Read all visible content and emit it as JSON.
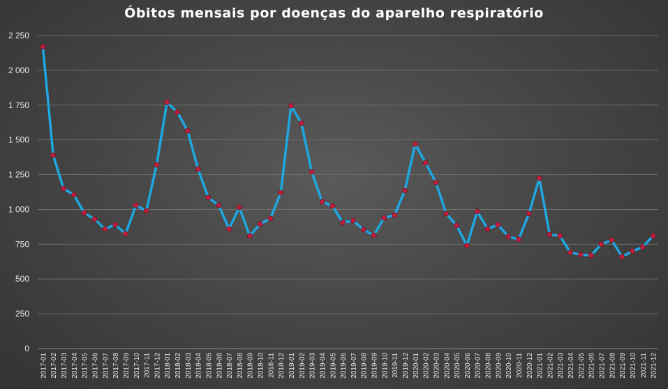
{
  "chart_data": {
    "type": "line",
    "title": "Óbitos mensais por doenças do aparelho respiratório",
    "xlabel": "",
    "ylabel": "",
    "ylim": [
      0,
      2250
    ],
    "yticks": [
      0,
      250,
      500,
      750,
      1000,
      1250,
      1500,
      1750,
      2000,
      2250
    ],
    "ytick_labels": [
      "0",
      "250",
      "500",
      "750",
      "1 000",
      "1 250",
      "1 500",
      "1 750",
      "2 000",
      "2 250"
    ],
    "grid": true,
    "legend": "none",
    "line_color": "#1ea7e1",
    "marker_color": "#c0203c",
    "categories": [
      "2017-01",
      "2017-02",
      "2017-03",
      "2017-04",
      "2017-05",
      "2017-06",
      "2017-07",
      "2017-08",
      "2017-09",
      "2017-10",
      "2017-11",
      "2017-12",
      "2018-01",
      "2018-02",
      "2018-03",
      "2018-04",
      "2018-05",
      "2018-06",
      "2018-07",
      "2018-08",
      "2018-09",
      "2018-10",
      "2018-11",
      "2018-12",
      "2019-01",
      "2019-02",
      "2019-03",
      "2019-04",
      "2019-05",
      "2019-06",
      "2019-07",
      "2019-08",
      "2019-09",
      "2019-10",
      "2019-11",
      "2019-12",
      "2020-01",
      "2020-02",
      "2020-03",
      "2020-04",
      "2020-05",
      "2020-06",
      "2020-07",
      "2020-08",
      "2020-09",
      "2020-10",
      "2020-11",
      "2020-12",
      "2021-01",
      "2021-02",
      "2021-03",
      "2021-04",
      "2021-05",
      "2021-06",
      "2021-07",
      "2021-08",
      "2021-09",
      "2021-10",
      "2021-11",
      "2021-12"
    ],
    "series": [
      {
        "values": [
          2170,
          1390,
          1150,
          1105,
          975,
          930,
          860,
          890,
          825,
          1030,
          990,
          1320,
          1770,
          1700,
          1565,
          1290,
          1085,
          1030,
          860,
          1015,
          810,
          895,
          935,
          1120,
          1745,
          1620,
          1270,
          1055,
          1025,
          905,
          920,
          855,
          815,
          940,
          960,
          1135,
          1470,
          1335,
          1195,
          970,
          885,
          740,
          985,
          860,
          890,
          805,
          785,
          970,
          1225,
          820,
          810,
          690,
          675,
          670,
          750,
          780,
          660,
          700,
          730,
          810
        ]
      }
    ]
  }
}
